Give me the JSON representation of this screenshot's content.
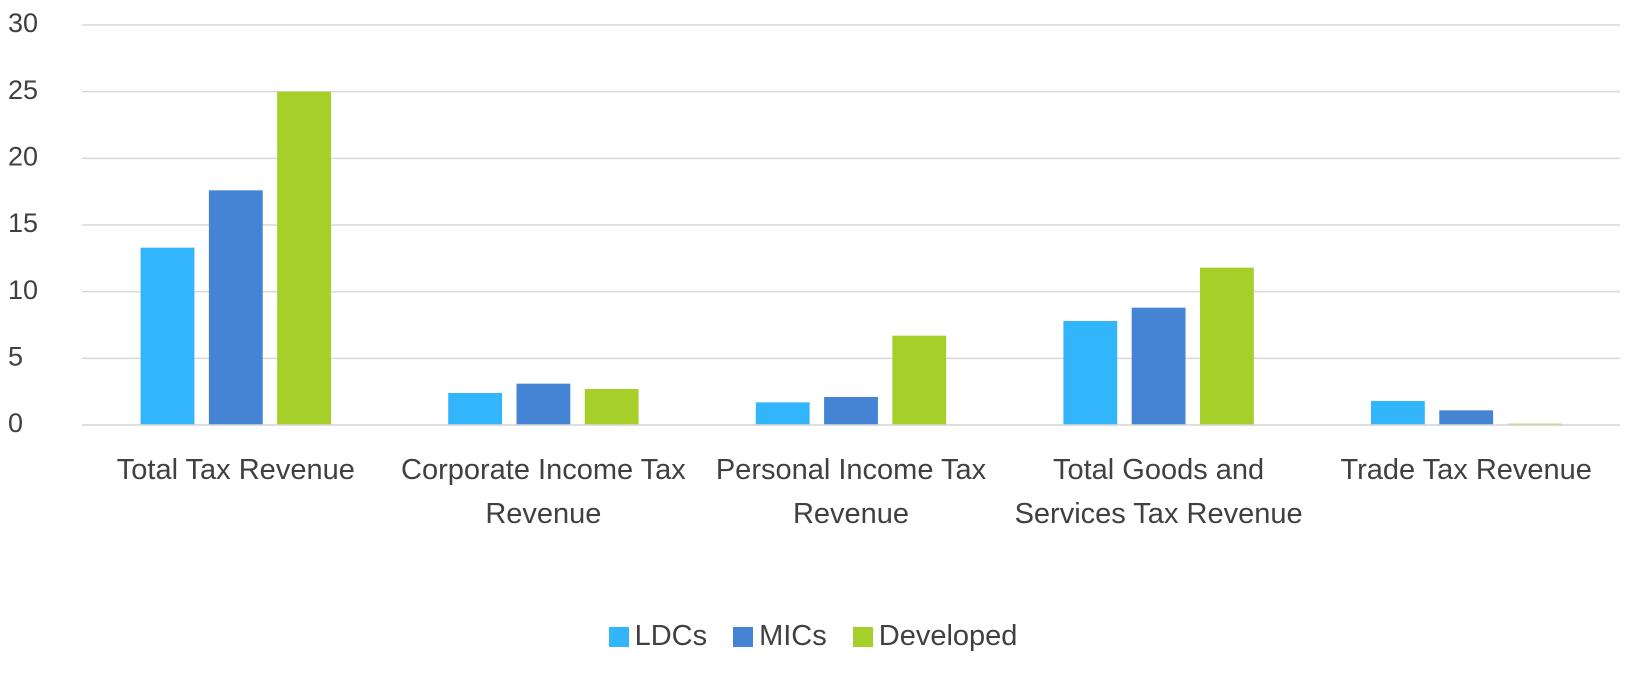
{
  "chart_data": {
    "type": "bar",
    "categories": [
      "Total Tax Revenue",
      "Corporate Income Tax Revenue",
      "Personal Income Tax Revenue",
      "Total Goods and Services Tax Revenue",
      "Trade Tax Revenue"
    ],
    "series": [
      {
        "name": "LDCs",
        "color": "#33b5fc",
        "values": [
          13.3,
          2.4,
          1.7,
          7.8,
          1.8
        ]
      },
      {
        "name": "MICs",
        "color": "#4584d4",
        "values": [
          17.6,
          3.1,
          2.1,
          8.8,
          1.1
        ]
      },
      {
        "name": "Developed",
        "color": "#a6cf2a",
        "values": [
          25.0,
          2.7,
          6.7,
          11.8,
          0.1
        ]
      }
    ],
    "ylim": [
      0,
      30
    ],
    "yticks": [
      0,
      5,
      10,
      15,
      20,
      25,
      30
    ],
    "grid": true,
    "legend": "bottom"
  }
}
